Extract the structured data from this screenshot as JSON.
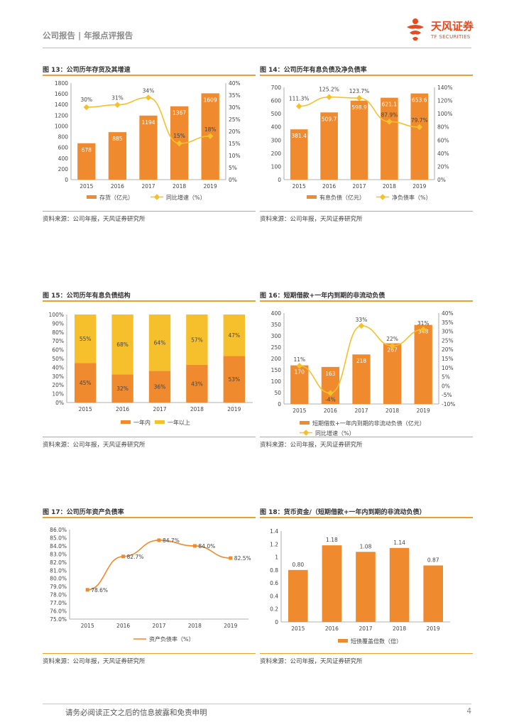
{
  "header": {
    "title": "公司报告 | 年报点评报告",
    "brand_cn": "天风证券",
    "brand_en": "TF SECURITIES"
  },
  "footer": {
    "disclaimer": "请务必阅读正文之后的信息披露和免责申明",
    "page": "4"
  },
  "colors": {
    "bar": "#ef8a2e",
    "line": "#f6c02c",
    "bar_light": "#f6c02c",
    "rule": "#e6a237"
  },
  "charts": [
    {
      "title": "图 13：公司历年存货及其增速",
      "source": "资料来源：公司年报，天风证券研究所",
      "chart_data": {
        "type": "bar",
        "categories": [
          "2015",
          "2016",
          "2017",
          "2018",
          "2019"
        ],
        "series": [
          {
            "name": "存货（亿元）",
            "values": [
              678,
              885,
              1194,
              1367,
              1609
            ],
            "labels": [
              "678",
              "885",
              "1194",
              "1367",
              "1609"
            ],
            "axis": "left"
          },
          {
            "name": "同比增速（%）",
            "type": "line",
            "values": [
              30,
              31,
              34,
              15,
              18
            ],
            "labels": [
              "30%",
              "31%",
              "34%",
              "15%",
              "18%"
            ],
            "axis": "right"
          }
        ],
        "ylim": [
          0,
          1800
        ],
        "yticks": [
          "0",
          "200",
          "400",
          "600",
          "800",
          "1000",
          "1200",
          "1400",
          "1600",
          "1800"
        ],
        "y2lim": [
          0,
          40
        ],
        "y2ticks": [
          "0%",
          "5%",
          "10%",
          "15%",
          "20%",
          "25%",
          "30%",
          "35%",
          "40%"
        ]
      }
    },
    {
      "title": "图 14：公司历年有息负债及净负债率",
      "source": "资料来源：公司年报，天风证券研究所",
      "chart_data": {
        "type": "bar",
        "categories": [
          "2015",
          "2016",
          "2017",
          "2018",
          "2019"
        ],
        "series": [
          {
            "name": "有息负债（亿元）",
            "values": [
              381.4,
              509.7,
              598.9,
              621.1,
              653.6
            ],
            "labels": [
              "381.4",
              "509.7",
              "598.9",
              "621.1",
              "653.6"
            ],
            "axis": "left"
          },
          {
            "name": "净负债率（%）",
            "type": "line",
            "values": [
              111.3,
              125.2,
              123.7,
              87.9,
              79.7
            ],
            "labels": [
              "111.3%",
              "125.2%",
              "123.7%",
              "87.9%",
              "79.7%"
            ],
            "axis": "right"
          }
        ],
        "ylim": [
          0,
          700
        ],
        "yticks": [
          "0",
          "100",
          "200",
          "300",
          "400",
          "500",
          "600",
          "700"
        ],
        "y2lim": [
          0,
          140
        ],
        "y2ticks": [
          "0%",
          "20%",
          "40%",
          "60%",
          "80%",
          "100%",
          "120%",
          "140%"
        ]
      }
    },
    {
      "title": "图 15：公司历年有息负债结构",
      "source": "资料来源：公司年报，天风证券研究所",
      "chart_data": {
        "type": "bar",
        "stacked": true,
        "categories": [
          "2015",
          "2016",
          "2017",
          "2018",
          "2019"
        ],
        "series": [
          {
            "name": "一年内",
            "values": [
              45,
              32,
              36,
              43,
              53
            ],
            "labels": [
              "45%",
              "32%",
              "36%",
              "43%",
              "53%"
            ]
          },
          {
            "name": "一年以上",
            "values": [
              55,
              68,
              64,
              57,
              47
            ],
            "labels": [
              "55%",
              "68%",
              "64%",
              "57%",
              "47%"
            ]
          }
        ],
        "ylim": [
          0,
          100
        ],
        "yticks": [
          "0%",
          "10%",
          "20%",
          "30%",
          "40%",
          "50%",
          "60%",
          "70%",
          "80%",
          "90%",
          "100%"
        ]
      }
    },
    {
      "title": "图 16：短期借款+一年内到期的非流动负债",
      "source": "资料来源：公司年报，天风证券研究所",
      "chart_data": {
        "type": "bar",
        "categories": [
          "2015",
          "2016",
          "2017",
          "2018",
          "2019"
        ],
        "series": [
          {
            "name": "短期借款+一年内到期的非流动负债（亿元）",
            "values": [
              170,
              163,
              218,
              267,
              348
            ],
            "labels": [
              "170",
              "163",
              "218",
              "267",
              "348"
            ],
            "axis": "left"
          },
          {
            "name": "同比增速（%）",
            "type": "line",
            "values": [
              11,
              -4,
              33,
              22,
              31
            ],
            "labels": [
              "11%",
              "-4%",
              "33%",
              "22%",
              "31%"
            ],
            "axis": "right"
          }
        ],
        "ylim": [
          0,
          400
        ],
        "yticks": [
          "0",
          "50",
          "100",
          "150",
          "200",
          "250",
          "300",
          "350",
          "400"
        ],
        "y2lim": [
          -10,
          40
        ],
        "y2ticks": [
          "-10%",
          "-5%",
          "0%",
          "5%",
          "10%",
          "15%",
          "20%",
          "25%",
          "30%",
          "35%",
          "40%"
        ]
      }
    },
    {
      "title": "图 17：公司历年资产负债率",
      "source": "资料来源：公司年报，天风证券研究所",
      "chart_data": {
        "type": "line",
        "categories": [
          "2015",
          "2016",
          "2017",
          "2018",
          "2019"
        ],
        "series": [
          {
            "name": "资产负债率（%）",
            "values": [
              78.6,
              82.7,
              84.7,
              84.0,
              82.5
            ],
            "labels": [
              "78.6%",
              "82.7%",
              "84.7%",
              "84.0%",
              "82.5%"
            ]
          }
        ],
        "ylim": [
          75,
          86
        ],
        "yticks": [
          "75.0%",
          "76.0%",
          "77.0%",
          "78.0%",
          "79.0%",
          "80.0%",
          "81.0%",
          "82.0%",
          "83.0%",
          "84.0%",
          "85.0%",
          "86.0%"
        ]
      }
    },
    {
      "title": "图 18：货币资金/（短期借款+一年内到期的非流动负债）",
      "source": "资料来源：公司年报，天风证券研究所",
      "chart_data": {
        "type": "bar",
        "categories": [
          "2015",
          "2016",
          "2017",
          "2018",
          "2019"
        ],
        "series": [
          {
            "name": "短债覆盖倍数（倍）",
            "values": [
              0.8,
              1.18,
              1.08,
              1.14,
              0.87
            ],
            "labels": [
              "0.80",
              "1.18",
              "1.08",
              "1.14",
              "0.87"
            ]
          }
        ],
        "ylim": [
          0,
          1.4
        ],
        "yticks": [
          "0",
          "0.2",
          "0.4",
          "0.6",
          "0.8",
          "1",
          "1.2",
          "1.4"
        ]
      }
    }
  ]
}
